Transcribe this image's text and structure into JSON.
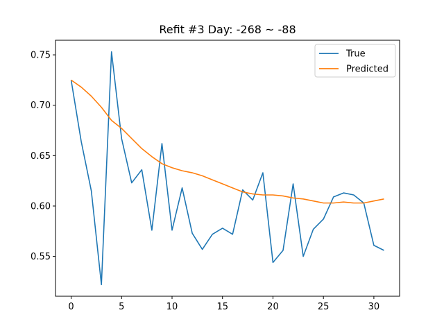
{
  "chart_data": {
    "type": "line",
    "title": "Refit #3 Day: -268 ~ -88",
    "xlabel": "",
    "ylabel": "",
    "xlim": [
      -1.55,
      32.55
    ],
    "ylim": [
      0.5105,
      0.7645
    ],
    "x_ticks": [
      0,
      5,
      10,
      15,
      20,
      25,
      30
    ],
    "y_ticks": [
      0.55,
      0.6,
      0.65,
      0.7,
      0.75
    ],
    "y_tick_labels": [
      "0.55",
      "0.60",
      "0.65",
      "0.70",
      "0.75"
    ],
    "grid": false,
    "legend_position": "top-right",
    "x": [
      0,
      1,
      2,
      3,
      4,
      5,
      6,
      7,
      8,
      9,
      10,
      11,
      12,
      13,
      14,
      15,
      16,
      17,
      18,
      19,
      20,
      21,
      22,
      23,
      24,
      25,
      26,
      27,
      28,
      29,
      30,
      31
    ],
    "series": [
      {
        "name": "True",
        "color": "#1f77b4",
        "values": [
          0.725,
          0.664,
          0.615,
          0.522,
          0.753,
          0.667,
          0.623,
          0.636,
          0.576,
          0.662,
          0.576,
          0.618,
          0.573,
          0.557,
          0.572,
          0.578,
          0.572,
          0.616,
          0.606,
          0.633,
          0.544,
          0.556,
          0.622,
          0.55,
          0.577,
          0.587,
          0.609,
          0.613,
          0.611,
          0.603,
          0.561,
          0.556
        ]
      },
      {
        "name": "Predicted",
        "color": "#ff7f0e",
        "values": [
          0.725,
          0.718,
          0.709,
          0.698,
          0.685,
          0.677,
          0.667,
          0.657,
          0.649,
          0.642,
          0.638,
          0.635,
          0.633,
          0.63,
          0.626,
          0.622,
          0.618,
          0.614,
          0.612,
          0.611,
          0.611,
          0.61,
          0.608,
          0.607,
          0.605,
          0.603,
          0.603,
          0.604,
          0.603,
          0.603,
          0.605,
          0.607
        ]
      }
    ]
  }
}
